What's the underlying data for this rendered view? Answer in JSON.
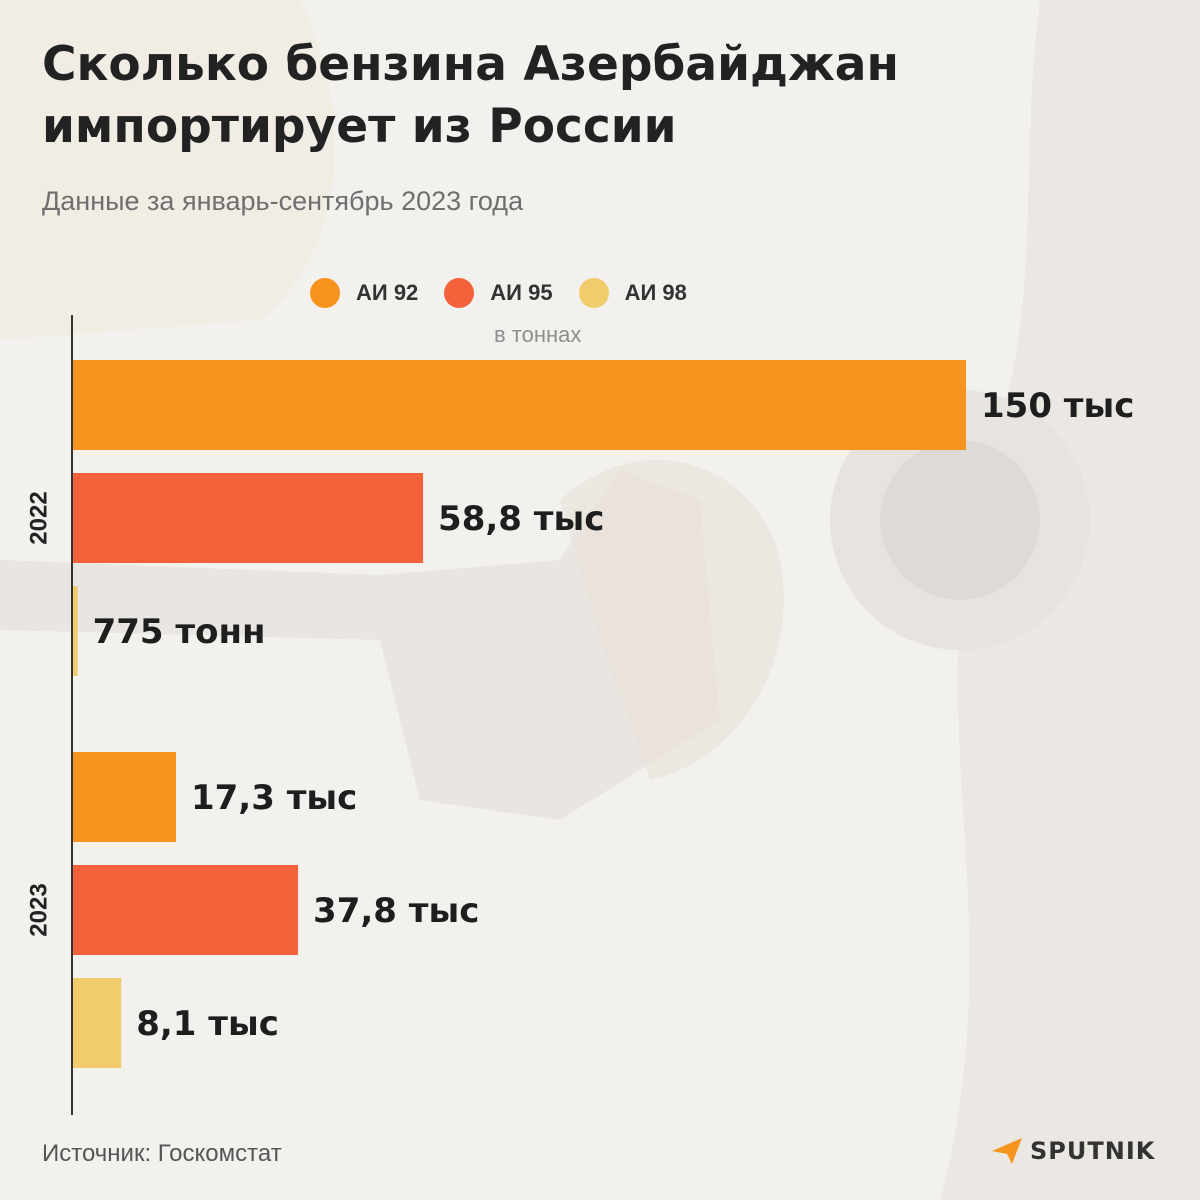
{
  "title": "Сколько бензина Азербайджан импортирует из России",
  "subtitle": "Данные за январь-сентябрь 2023 года",
  "units": "в тоннах",
  "legend": [
    {
      "label": "АИ 92",
      "color": "#f7941d"
    },
    {
      "label": "АИ 95",
      "color": "#f5613a"
    },
    {
      "label": "АИ 98",
      "color": "#f0cc6c"
    }
  ],
  "source": "Источник: Госкомстат",
  "brand": "SPUTNIK",
  "chart_data": {
    "type": "bar",
    "orientation": "horizontal",
    "title": "Сколько бензина Азербайджан импортирует из России",
    "subtitle": "Данные за январь-сентябрь 2023 года",
    "xlabel": "в тоннах",
    "categories": [
      "2022",
      "2023"
    ],
    "xlim": [
      0,
      150000
    ],
    "series": [
      {
        "name": "АИ 92",
        "color": "#f7941d",
        "values": [
          150000,
          17300
        ],
        "labels": [
          "150 тыс",
          "17,3 тыс"
        ]
      },
      {
        "name": "АИ 95",
        "color": "#f5613a",
        "values": [
          58800,
          37800
        ],
        "labels": [
          "58,8 тыс",
          "37,8 тыс"
        ]
      },
      {
        "name": "АИ 98",
        "color": "#f0cc6c",
        "values": [
          775,
          8100
        ],
        "labels": [
          "775 тонн",
          "8,1 тыс"
        ]
      }
    ],
    "grid": false,
    "legend_position": "top-center"
  }
}
